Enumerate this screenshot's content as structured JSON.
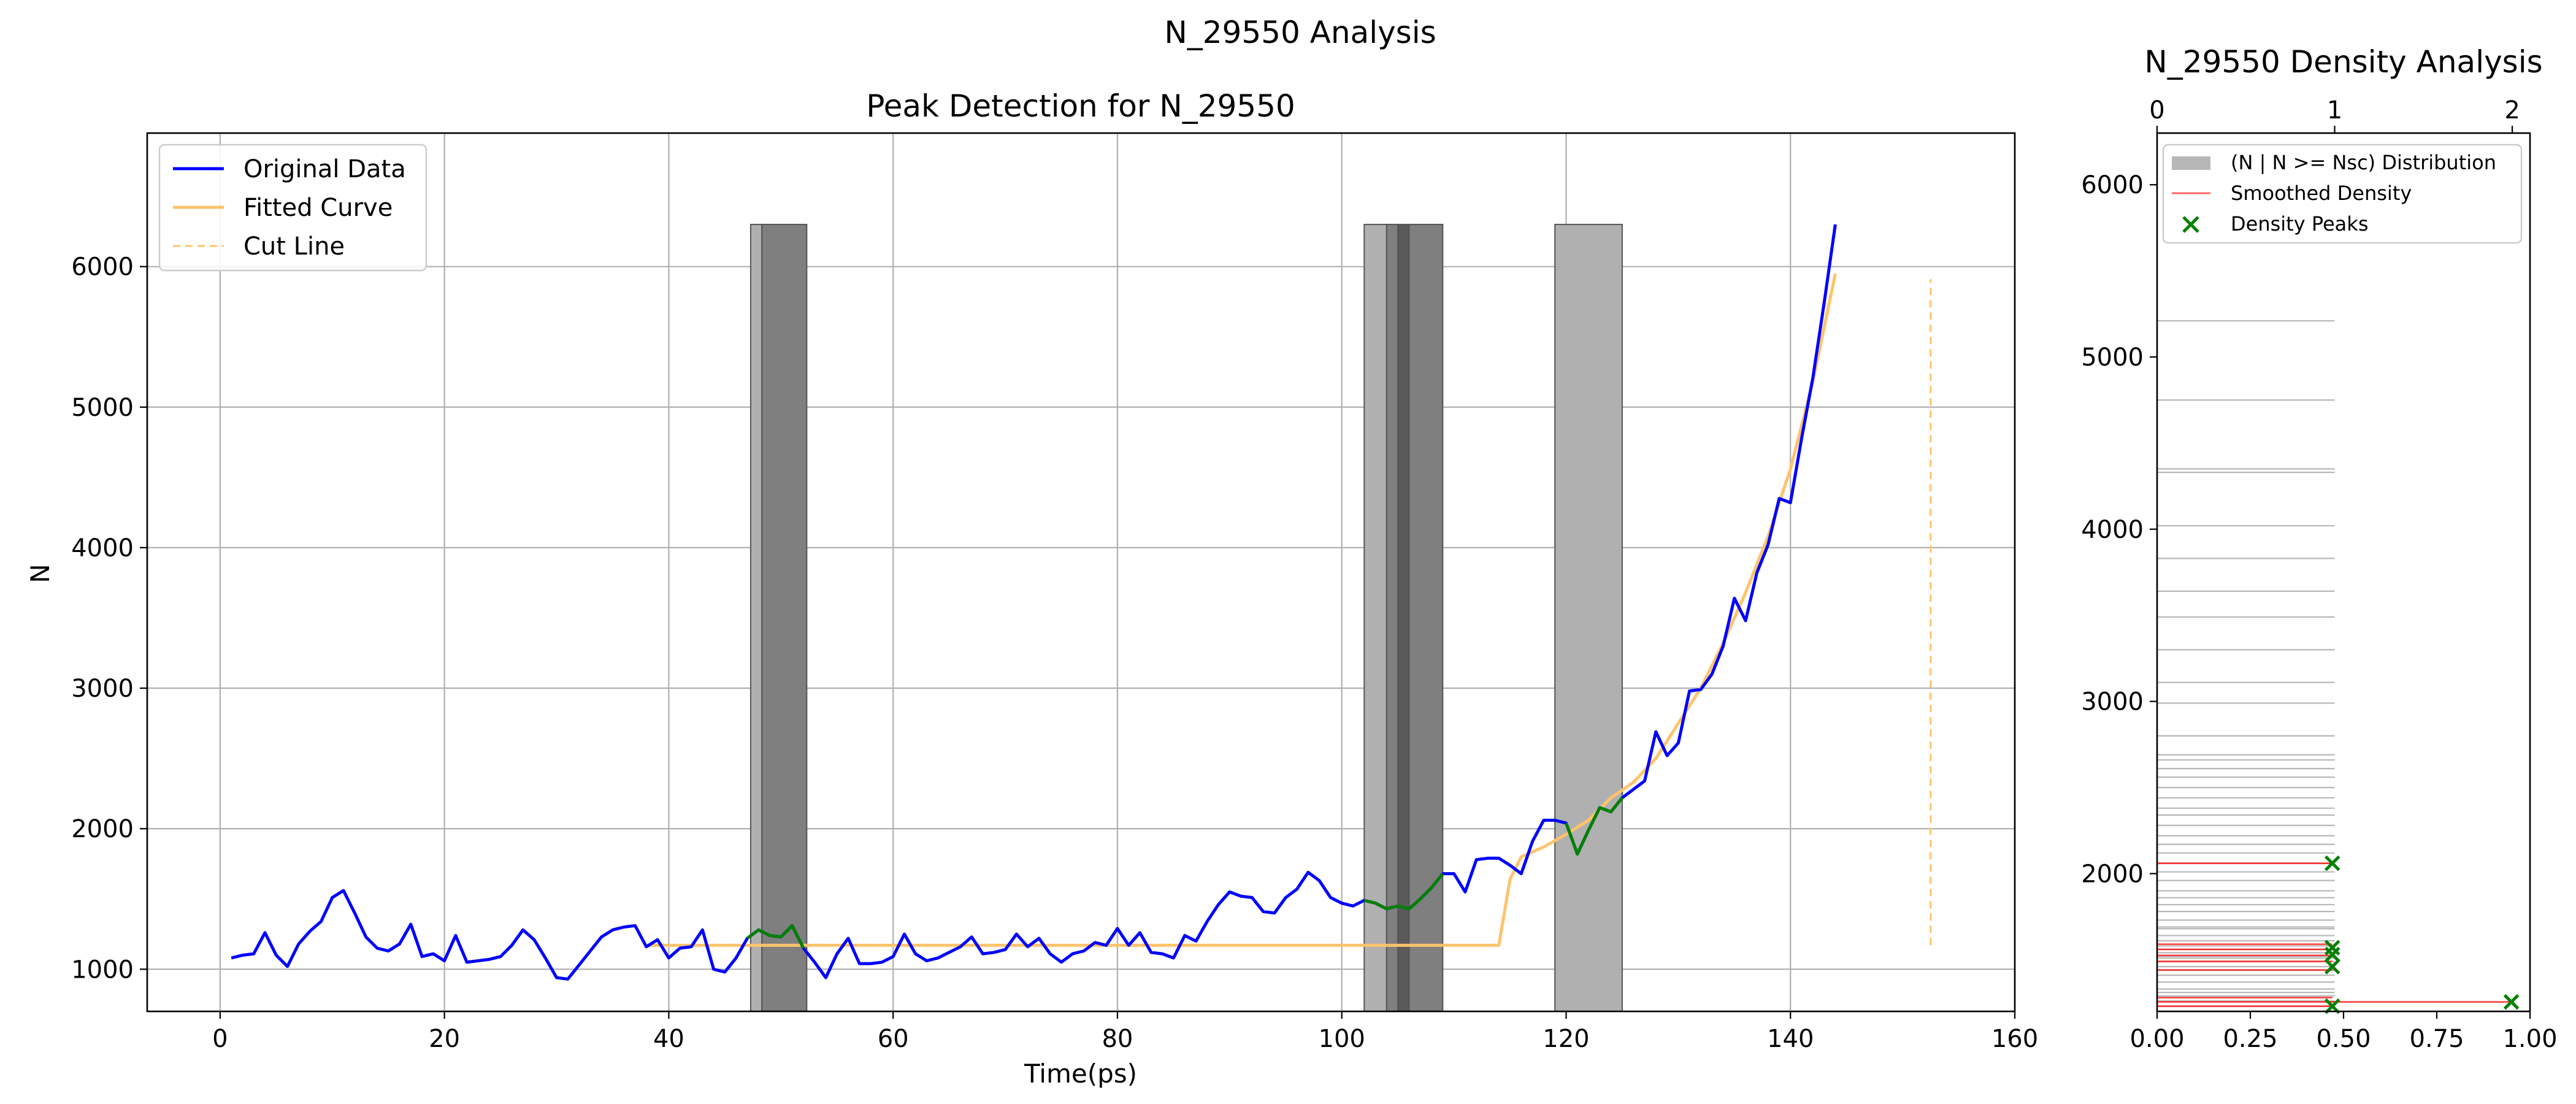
{
  "suptitle": "N_29550 Analysis",
  "colors": {
    "original": "#0000ff",
    "fitted": "#ffc36b",
    "cut": "#ffc36b",
    "peak_segment": "#008000",
    "band_light": "#b0b0b0",
    "band_dark": "#7f7f7f",
    "smoothed": "#ff0000",
    "marker": "#008000",
    "distribution": "#b7b7b7"
  },
  "chart_data": [
    {
      "type": "line",
      "title": "Peak Detection for N_29550",
      "xlabel": "Time(ps)",
      "ylabel": "N",
      "xlim": [
        -6.5,
        160
      ],
      "ylim": [
        700,
        6950
      ],
      "xticks": [
        0,
        20,
        40,
        60,
        80,
        100,
        120,
        140,
        160
      ],
      "yticks": [
        1000,
        2000,
        3000,
        4000,
        5000,
        6000
      ],
      "grid": true,
      "legend": {
        "position": "top-left",
        "entries": [
          "Original Data",
          "Fitted Curve",
          "Cut Line"
        ]
      },
      "series": [
        {
          "name": "Original Data",
          "x": [
            1,
            2,
            3,
            4,
            5,
            6,
            7,
            8,
            9,
            10,
            11,
            12,
            13,
            14,
            15,
            16,
            17,
            18,
            19,
            20,
            21,
            22,
            23,
            24,
            25,
            26,
            27,
            28,
            29,
            30,
            31,
            32,
            33,
            34,
            35,
            36,
            37,
            38,
            39,
            40,
            41,
            42,
            43,
            44,
            45,
            46,
            47,
            48,
            49,
            50,
            51,
            52,
            53,
            54,
            55,
            56,
            57,
            58,
            59,
            60,
            61,
            62,
            63,
            64,
            65,
            66,
            67,
            68,
            69,
            70,
            71,
            72,
            73,
            74,
            75,
            76,
            77,
            78,
            79,
            80,
            81,
            82,
            83,
            84,
            85,
            86,
            87,
            88,
            89,
            90,
            91,
            92,
            93,
            94,
            95,
            96,
            97,
            98,
            99,
            100,
            101,
            102,
            103,
            104,
            105,
            106,
            107,
            108,
            109,
            110,
            111,
            112,
            113,
            114,
            115,
            116,
            117,
            118,
            119,
            120,
            121,
            122,
            123,
            124,
            125,
            126,
            127,
            128,
            129,
            130,
            131,
            132,
            133,
            134,
            135,
            136,
            137,
            138,
            139,
            140,
            141,
            142,
            143,
            144
          ],
          "y": [
            1080,
            1100,
            1110,
            1260,
            1100,
            1020,
            1180,
            1270,
            1340,
            1510,
            1560,
            1400,
            1230,
            1150,
            1130,
            1180,
            1320,
            1090,
            1110,
            1060,
            1240,
            1050,
            1060,
            1070,
            1090,
            1170,
            1280,
            1210,
            1080,
            940,
            930,
            1030,
            1130,
            1230,
            1280,
            1300,
            1310,
            1160,
            1210,
            1080,
            1150,
            1160,
            1280,
            1000,
            980,
            1080,
            1220,
            1280,
            1240,
            1230,
            1310,
            1150,
            1050,
            940,
            1110,
            1220,
            1040,
            1040,
            1050,
            1090,
            1250,
            1110,
            1060,
            1080,
            1120,
            1160,
            1230,
            1110,
            1120,
            1140,
            1250,
            1160,
            1220,
            1110,
            1050,
            1110,
            1130,
            1190,
            1170,
            1290,
            1170,
            1260,
            1120,
            1110,
            1080,
            1240,
            1200,
            1340,
            1460,
            1550,
            1520,
            1510,
            1410,
            1400,
            1510,
            1570,
            1690,
            1630,
            1510,
            1470,
            1450,
            1490,
            1470,
            1430,
            1450,
            1430,
            1500,
            1580,
            1680,
            1680,
            1550,
            1780,
            1790,
            1790,
            1740,
            1680,
            1910,
            2060,
            2060,
            2040,
            1820,
            1990,
            2150,
            2120,
            2220,
            2280,
            2340,
            2690,
            2520,
            2610,
            2980,
            2990,
            3100,
            3300,
            3640,
            3480,
            3820,
            4020,
            4350,
            4320,
            4780,
            5210,
            5740,
            6300
          ]
        },
        {
          "name": "Fitted Curve",
          "x": [
            38,
            114,
            115,
            116,
            118,
            120,
            122,
            124,
            126,
            128,
            130,
            132,
            134,
            136,
            138,
            140,
            142,
            144
          ],
          "y": [
            1170,
            1170,
            1640,
            1800,
            1870,
            1960,
            2060,
            2220,
            2330,
            2500,
            2750,
            3000,
            3320,
            3680,
            4080,
            4560,
            5180,
            5950
          ]
        },
        {
          "name": "Cut Line",
          "x": [
            152.5,
            152.5
          ],
          "y": [
            1170,
            5910
          ]
        }
      ],
      "peak_segments": [
        {
          "x": [
            47,
            48,
            49,
            50,
            51,
            52
          ],
          "y": [
            1220,
            1280,
            1240,
            1230,
            1310,
            1150
          ]
        },
        {
          "x": [
            102,
            103,
            104,
            105,
            106,
            107,
            108,
            109
          ],
          "y": [
            1490,
            1470,
            1430,
            1450,
            1430,
            1500,
            1580,
            1680
          ]
        },
        {
          "x": [
            120,
            121,
            122,
            123,
            124,
            125
          ],
          "y": [
            2040,
            1820,
            1990,
            2150,
            2120,
            2220
          ]
        }
      ],
      "bands": [
        {
          "x0": 47.3,
          "x1": 48.3,
          "shade": "light",
          "y_top": 6300
        },
        {
          "x0": 48.3,
          "x1": 52.3,
          "shade": "dark",
          "y_top": 6300
        },
        {
          "x0": 102.0,
          "x1": 104.0,
          "shade": "light",
          "y_top": 6300
        },
        {
          "x0": 104.0,
          "x1": 105.0,
          "shade": "dark",
          "y_top": 6300
        },
        {
          "x0": 105.0,
          "x1": 106.0,
          "shade": "darker",
          "y_top": 6300
        },
        {
          "x0": 106.0,
          "x1": 109.0,
          "shade": "dark",
          "y_top": 6300
        },
        {
          "x0": 119.0,
          "x1": 125.0,
          "shade": "light",
          "y_top": 6300
        }
      ]
    },
    {
      "type": "bar",
      "title": "N_29550 Density Analysis",
      "xlabel": "",
      "ylabel": "",
      "xlim": [
        0,
        1
      ],
      "xlim_top": [
        0,
        2.1
      ],
      "ylim": [
        1200,
        6300
      ],
      "xticks": [
        0.0,
        0.25,
        0.5,
        0.75,
        1.0
      ],
      "xtick_labels": [
        "0.00",
        "0.25",
        "0.50",
        "0.75",
        "1.00"
      ],
      "xticks_top": [
        0,
        1,
        2
      ],
      "yticks": [
        2000,
        3000,
        4000,
        5000,
        6000
      ],
      "grid": false,
      "legend": {
        "position": "top-right",
        "entries": [
          "(N | N >= Nsc) Distribution",
          "Smoothed Density",
          "Density Peaks"
        ]
      },
      "distribution": {
        "n_values": [
          1230,
          1260,
          1290,
          1310,
          1330,
          1370,
          1410,
          1440,
          1460,
          1490,
          1510,
          1520,
          1540,
          1560,
          1580,
          1610,
          1640,
          1680,
          1690,
          1730,
          1780,
          1820,
          1860,
          1900,
          1960,
          2010,
          2060,
          2120,
          2170,
          2220,
          2280,
          2340,
          2380,
          2440,
          2500,
          2560,
          2610,
          2660,
          2690,
          2800,
          2990,
          3110,
          3300,
          3490,
          3640,
          3830,
          4020,
          4330,
          4350,
          4750,
          5210
        ],
        "count": 1
      },
      "smoothed_density": [
        {
          "n": 1230,
          "density": 0.47
        },
        {
          "n": 1255,
          "density": 0.95
        },
        {
          "n": 1280,
          "density": 0.47
        },
        {
          "n": 1440,
          "density": 0.47
        },
        {
          "n": 1490,
          "density": 0.47
        },
        {
          "n": 1525,
          "density": 0.47
        },
        {
          "n": 1560,
          "density": 0.47
        },
        {
          "n": 1590,
          "density": 0.47
        },
        {
          "n": 2060,
          "density": 0.47
        }
      ],
      "density_peaks": [
        {
          "n": 1230,
          "density": 0.47
        },
        {
          "n": 1255,
          "density": 0.95
        },
        {
          "n": 1460,
          "density": 0.47
        },
        {
          "n": 1530,
          "density": 0.47
        },
        {
          "n": 1570,
          "density": 0.47
        },
        {
          "n": 2060,
          "density": 0.47
        }
      ]
    }
  ]
}
